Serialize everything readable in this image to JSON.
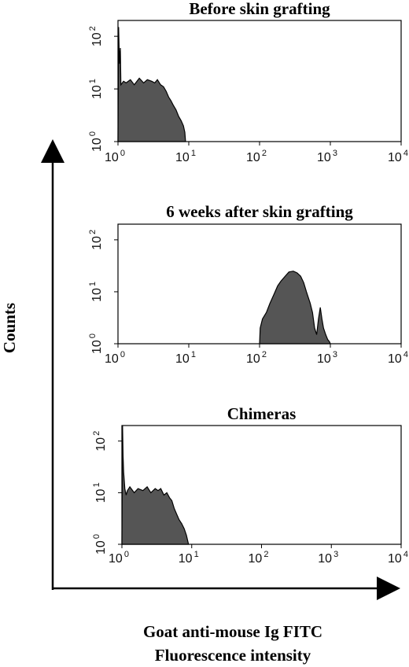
{
  "axes": {
    "y_title": "Counts",
    "x_title_line1": "Goat anti-mouse Ig FITC",
    "x_title_line2": "Fluorescence intensity"
  },
  "chart_data": [
    {
      "type": "area",
      "title": "Before skin grafting",
      "xscale": "log",
      "yscale": "log",
      "xlim": [
        1,
        10000
      ],
      "ylim": [
        1,
        200
      ],
      "xticks": [
        {
          "base": "10",
          "exp": "0"
        },
        {
          "base": "10",
          "exp": "1"
        },
        {
          "base": "10",
          "exp": "2"
        },
        {
          "base": "10",
          "exp": "3"
        },
        {
          "base": "10",
          "exp": "4"
        }
      ],
      "yticks": [
        {
          "base": "10",
          "exp": "0"
        },
        {
          "base": "10",
          "exp": "1"
        },
        {
          "base": "10",
          "exp": "2"
        }
      ],
      "x": [
        1.0,
        1.02,
        1.05,
        1.08,
        1.1,
        1.2,
        1.3,
        1.5,
        1.7,
        2.0,
        2.3,
        2.6,
        3.0,
        3.3,
        3.6,
        4.0,
        4.4,
        4.8,
        5.2,
        5.6,
        6.0,
        6.6,
        7.2,
        7.8,
        8.4,
        8.8,
        9.0
      ],
      "y": [
        1,
        150,
        30,
        60,
        12,
        14,
        13,
        15,
        12,
        16,
        13,
        15,
        14,
        13,
        15,
        12,
        11,
        9,
        7,
        6,
        5,
        4,
        3,
        2.5,
        2,
        1.5,
        1
      ]
    },
    {
      "type": "area",
      "title": "6 weeks after skin grafting",
      "xscale": "log",
      "yscale": "log",
      "xlim": [
        1,
        10000
      ],
      "ylim": [
        1,
        200
      ],
      "xticks": [
        {
          "base": "10",
          "exp": "0"
        },
        {
          "base": "10",
          "exp": "1"
        },
        {
          "base": "10",
          "exp": "2"
        },
        {
          "base": "10",
          "exp": "3"
        },
        {
          "base": "10",
          "exp": "4"
        }
      ],
      "yticks": [
        {
          "base": "10",
          "exp": "0"
        },
        {
          "base": "10",
          "exp": "1"
        },
        {
          "base": "10",
          "exp": "2"
        }
      ],
      "x": [
        100,
        102,
        110,
        125,
        140,
        160,
        180,
        200,
        230,
        260,
        300,
        340,
        380,
        420,
        460,
        520,
        560,
        600,
        640,
        680,
        720,
        760,
        800,
        860,
        920,
        970,
        1000
      ],
      "y": [
        1,
        2,
        3,
        4,
        6,
        9,
        13,
        16,
        20,
        24,
        25,
        23,
        20,
        15,
        10,
        6,
        4,
        2,
        1.5,
        3,
        5,
        3,
        2,
        1.5,
        1.2,
        1.1,
        1
      ]
    },
    {
      "type": "area",
      "title": "Chimeras",
      "xscale": "log",
      "yscale": "log",
      "xlim": [
        1,
        10000
      ],
      "ylim": [
        1,
        200
      ],
      "xticks": [
        {
          "base": "10",
          "exp": "0"
        },
        {
          "base": "10",
          "exp": "1"
        },
        {
          "base": "10",
          "exp": "2"
        },
        {
          "base": "10",
          "exp": "3"
        },
        {
          "base": "10",
          "exp": "4"
        }
      ],
      "yticks": [
        {
          "base": "10",
          "exp": "0"
        },
        {
          "base": "10",
          "exp": "1"
        },
        {
          "base": "10",
          "exp": "2"
        }
      ],
      "x": [
        1.0,
        1.02,
        1.04,
        1.06,
        1.1,
        1.15,
        1.2,
        1.3,
        1.5,
        1.7,
        2.0,
        2.3,
        2.6,
        3.0,
        3.3,
        3.6,
        4.0,
        4.4,
        4.8,
        5.2,
        5.6,
        6.0,
        6.6,
        7.2,
        7.8,
        8.4,
        9.0
      ],
      "y": [
        1,
        200,
        50,
        25,
        12,
        9,
        11,
        13,
        10,
        12,
        11,
        13,
        10,
        12,
        11,
        12,
        9,
        10,
        8,
        7,
        5,
        4,
        3,
        2.5,
        2,
        1.5,
        1
      ]
    }
  ],
  "colors": {
    "fill": "#555555",
    "stroke": "#000000",
    "axis": "#000000"
  }
}
